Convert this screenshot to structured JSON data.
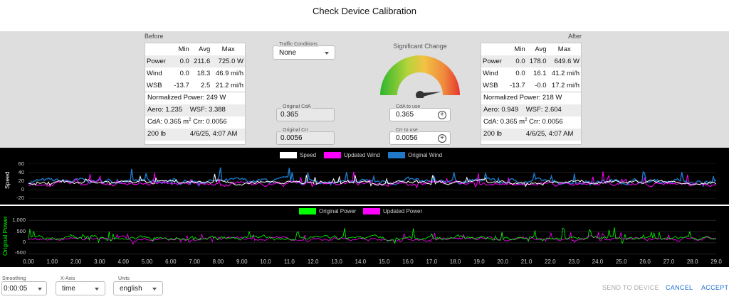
{
  "title": "Check Device Calibration",
  "before": {
    "label": "Before",
    "headers": [
      "",
      "Min",
      "Avg",
      "Max"
    ],
    "rows": [
      {
        "name": "Power",
        "min": "0.0",
        "avg": "211.6",
        "max": "725.0 W"
      },
      {
        "name": "Wind",
        "min": "0.0",
        "avg": "18.3",
        "max": "46.9 mi/h"
      },
      {
        "name": "WSB",
        "min": "-13.7",
        "avg": "2.5",
        "max": "21.2 mi/h"
      }
    ],
    "normalized_power": "Normalized Power: 249 W",
    "aero": "Aero: 1.235",
    "wsf": "WSF: 3.388",
    "cda": "CdA: 0.365 m",
    "cda_sup": "2",
    "crr": "Crr: 0.0056",
    "weight": "200 lb",
    "datetime": "4/6/25, 4:07 AM"
  },
  "after": {
    "label": "After",
    "headers": [
      "",
      "Min",
      "Avg",
      "Max"
    ],
    "rows": [
      {
        "name": "Power",
        "min": "0.0",
        "avg": "178.0",
        "max": "649.6 W"
      },
      {
        "name": "Wind",
        "min": "0.0",
        "avg": "16.1",
        "max": "41.2 mi/h"
      },
      {
        "name": "WSB",
        "min": "-13.7",
        "avg": "-0.0",
        "max": "17.2 mi/h"
      }
    ],
    "normalized_power": "Normalized Power: 218 W",
    "aero": "Aero: 0.949",
    "wsf": "WSF: 2.604",
    "cda": "CdA: 0.365 m",
    "cda_sup": "2",
    "crr": "Crr: 0.0056",
    "weight": "200 lb",
    "datetime": "4/6/25, 4:07 AM"
  },
  "traffic": {
    "label": "Traffic Conditions",
    "value": "None"
  },
  "original_cda": {
    "label": "Original CdA",
    "value": "0.365"
  },
  "original_crr": {
    "label": "Original Crr",
    "value": "0.0056"
  },
  "cda_to_use": {
    "label": "CdA to use",
    "value": "0.365"
  },
  "crr_to_use": {
    "label": "Crr to use",
    "value": "0.0056"
  },
  "gauge": {
    "label": "Significant Change",
    "needle_fraction": 0.95
  },
  "chart_data": [
    {
      "type": "line",
      "ylabel": "Speed",
      "yticks": [
        "60",
        "40",
        "20",
        "0",
        "-20"
      ],
      "ylim": [
        -20,
        60
      ],
      "series": [
        {
          "name": "Speed",
          "color": "#ffffff"
        },
        {
          "name": "Updated Wind",
          "color": "#ff00ff"
        },
        {
          "name": "Original Wind",
          "color": "#1f78c8"
        }
      ],
      "approx_levels": {
        "Speed": 17,
        "Updated Wind": 14,
        "Original Wind": 20
      }
    },
    {
      "type": "line",
      "ylabel": "Original Power",
      "yticks": [
        "1,000",
        "500",
        "0",
        "-500"
      ],
      "ylim": [
        -600,
        1100
      ],
      "series": [
        {
          "name": "Original Power",
          "color": "#00ff00"
        },
        {
          "name": "Updated Power",
          "color": "#ff00ff"
        }
      ],
      "approx_levels": {
        "Original Power": 210,
        "Updated Power": 178
      },
      "xticks": [
        "0.00",
        "1.00",
        "2.00",
        "3.00",
        "4.00",
        "5.00",
        "6.00",
        "7.00",
        "8.00",
        "9.00",
        "10.0",
        "11.0",
        "12.0",
        "13.0",
        "14.0",
        "15.0",
        "16.0",
        "17.0",
        "18.0",
        "19.0",
        "20.0",
        "21.0",
        "22.0",
        "23.0",
        "24.0",
        "25.0",
        "26.0",
        "27.0",
        "28.0",
        "29.0"
      ],
      "xlim": [
        0,
        29
      ]
    }
  ],
  "bottom": {
    "smoothing_label": "Smoothing",
    "smoothing_value": "0:00:05",
    "xaxis_label": "X-Axis",
    "xaxis_value": "time",
    "units_label": "Units",
    "units_value": "english",
    "send_label": "SEND TO DEVICE",
    "cancel_label": "CANCEL",
    "accept_label": "ACCEPT"
  },
  "colors": {
    "accent": "#1a6fd0",
    "disabled": "#a8a8a8"
  }
}
